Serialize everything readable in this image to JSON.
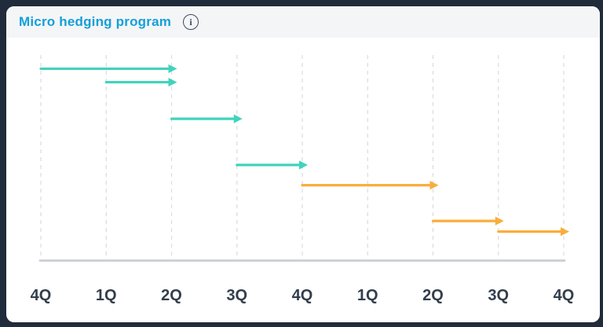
{
  "header": {
    "title": "Micro hedging program",
    "info_icon_glyph": "i"
  },
  "colors": {
    "page_background": "#202b3b",
    "card_background": "#ffffff",
    "header_background": "#f4f5f7",
    "title_text": "#149fd8",
    "info_icon": "#3e4a57",
    "gridline": "#d9dce1",
    "axis_line": "#ccd2d9",
    "tick_label": "#333e4c",
    "teal_series": "#41d3bd",
    "orange_series": "#f9ae3b"
  },
  "chart_data": {
    "type": "timeline-arrows",
    "title": "Micro hedging program",
    "x_tick_labels": [
      "4Q",
      "1Q",
      "2Q",
      "3Q",
      "4Q",
      "1Q",
      "2Q",
      "3Q",
      "4Q"
    ],
    "grid": "vertical-dashed",
    "legend": "none",
    "axis_baseline": "bottom",
    "series": [
      {
        "name": "teal-arrows",
        "color": "#41d3bd",
        "segments": [
          {
            "from_tick": 0,
            "to_tick": 2,
            "row_frac": 0.067
          },
          {
            "from_tick": 1,
            "to_tick": 2,
            "row_frac": 0.133
          },
          {
            "from_tick": 2,
            "to_tick": 3,
            "row_frac": 0.312
          },
          {
            "from_tick": 3,
            "to_tick": 4,
            "row_frac": 0.538
          }
        ]
      },
      {
        "name": "orange-arrows",
        "color": "#f9ae3b",
        "segments": [
          {
            "from_tick": 4,
            "to_tick": 6,
            "row_frac": 0.637
          },
          {
            "from_tick": 6,
            "to_tick": 7,
            "row_frac": 0.812
          },
          {
            "from_tick": 7,
            "to_tick": 8,
            "row_frac": 0.864
          }
        ]
      }
    ]
  }
}
